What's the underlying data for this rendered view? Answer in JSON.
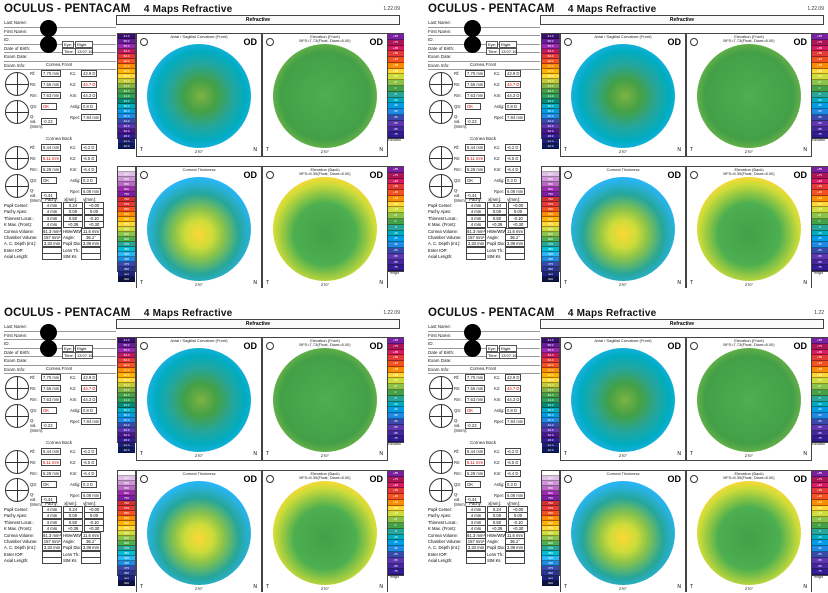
{
  "report": {
    "brand": "OCULUS - PENTACAM",
    "subtitle": "4 Maps Refractive",
    "section_title": "Refractive",
    "patient_labels": [
      "Last Name:",
      "First Name:",
      "ID:",
      "Date of Birth:",
      "Exam Date:",
      "Exam Info:"
    ],
    "eye_label": "Eye:",
    "eye_value": "Right",
    "time_label": "Time:",
    "front_title": "Cornea Front",
    "back_title": "Cornea Back",
    "front_rows": [
      {
        "k1": "Rf:",
        "v1": "7.70 mm",
        "k2": "K1:",
        "v2": "43.9 D"
      },
      {
        "k1": "Rs:",
        "v1": "7.56 mm",
        "k2": "K2:",
        "v2": "44.7 D"
      },
      {
        "k1": "Rm:",
        "v1": "7.63 mm",
        "k2": "Km:",
        "v2": "44.3 D"
      },
      {
        "k1": "QS:",
        "v1": "OK",
        "k2": "Astig:",
        "v2": "0.8 D"
      },
      {
        "k1": "Q-val.(8mm):",
        "v1": "-0.23",
        "k2": "Rper:",
        "v2": "7.94 mm"
      }
    ],
    "back_rows": [
      {
        "k1": "Rf:",
        "v1": "6.44 mm",
        "k2": "K1:",
        "v2": "-6.2 D"
      },
      {
        "k1": "Rs:",
        "v1": "6.11 mm",
        "k2": "K2:",
        "v2": "-6.5 D"
      },
      {
        "k1": "Rm:",
        "v1": "6.28 mm",
        "k2": "Km:",
        "v2": "-6.4 D"
      },
      {
        "k1": "QS:",
        "v1": "OK",
        "k2": "Astig:",
        "v2": "0.3 D"
      },
      {
        "k1": "Q-val.(8mm):",
        "v1": "-0.44",
        "k2": "Rper:",
        "v2": "6.08 mm"
      }
    ],
    "pachy_head": [
      "Pachy:",
      "x[mm]:",
      "y[mm]:"
    ],
    "pachy_rows": [
      {
        "label": "Pupil Center:",
        "v": [
          "",
          "0.24",
          "+0.00"
        ]
      },
      {
        "label": "Pachy Apex:",
        "v": [
          "",
          "0.00",
          "0.00"
        ]
      },
      {
        "label": "Thinnest Locat.:",
        "v": [
          "",
          "0.50",
          "-0.10"
        ]
      },
      {
        "label": "K Max. (Front):",
        "v": [
          "",
          "+0.39",
          "+0.30"
        ]
      }
    ],
    "vol_rows": [
      {
        "a": "Cornea Volume:",
        "b": "61.3 mm³",
        "c": "HWe/WtW:",
        "d": "11.5 mm"
      },
      {
        "a": "Chamber Volume:",
        "b": "157 mm³",
        "c": "Angle:",
        "d": "36.1°"
      },
      {
        "a": "A. C. Depth (Int.):",
        "b": "3.33 mm",
        "c": "Pupil Dia:",
        "d": "3.39 mm"
      },
      {
        "a": "Enter IOP:",
        "b": "",
        "c": "Lens Th.:",
        "d": ""
      },
      {
        "a": "Axial Length:",
        "b": "",
        "c": "SIM Ks",
        "d": ""
      }
    ],
    "map_titles": {
      "axial": "Axial / Sagittal Curvature (Front)",
      "elev_front": "Elevation (Front)",
      "elev_front_sub": "BFS=7.73(Float, Diam=8.00)",
      "thickness": "Corneal Thickness",
      "elev_back": "Elevation (Back)",
      "elev_back_sub": "BFS=6.35(Float, Diam=8.00)"
    },
    "od": "OD",
    "t": "T",
    "n": "N",
    "deg": "270°",
    "scale_names": {
      "axial": "Curvature Axial",
      "elev": "Elevation",
      "pachy": "Pachy",
      "height": "Height"
    },
    "axial_ticks": [
      "61.0",
      "58.0",
      "55.0",
      "52.0",
      "50.0",
      "48.0",
      "47.0",
      "46.0",
      "45.0",
      "44.0",
      "43.0",
      "42.0",
      "41.0",
      "40.0",
      "39.0",
      "38.0",
      "36.0",
      "34.0",
      "32.0",
      "30.0",
      "28.0",
      "25.0",
      "22.0"
    ],
    "elev_ticks": [
      "+85",
      "+75",
      "+65",
      "+55",
      "+45",
      "+35",
      "+25",
      "+15",
      "+5",
      "0",
      "-5",
      "-15",
      "-25",
      "-35",
      "-45",
      "-55",
      "-65",
      "-75"
    ],
    "pachy_ticks": [
      "1000",
      "950",
      "900",
      "850",
      "800",
      "750",
      "700",
      "675",
      "650",
      "625",
      "600",
      "575",
      "550",
      "525",
      "500",
      "475",
      "450",
      "425",
      "400",
      "375",
      "350",
      "325",
      "300"
    ]
  },
  "reports": [
    {
      "date": "1.22.09",
      "exam_time": "13:07:16",
      "thin": "4 mm"
    },
    {
      "date": "1.22.09",
      "exam_time": "13:07:16",
      "thin": "4 mm"
    },
    {
      "date": "1.22.09",
      "exam_time": "13:07:16",
      "thin": "4 mm"
    },
    {
      "date": "1.22",
      "exam_time": "13:07:16",
      "thin": "4 mm"
    }
  ],
  "colors": {
    "bg": "#ffffff",
    "border": "#444444",
    "text": "#111111",
    "red_value": "#cc0000"
  }
}
